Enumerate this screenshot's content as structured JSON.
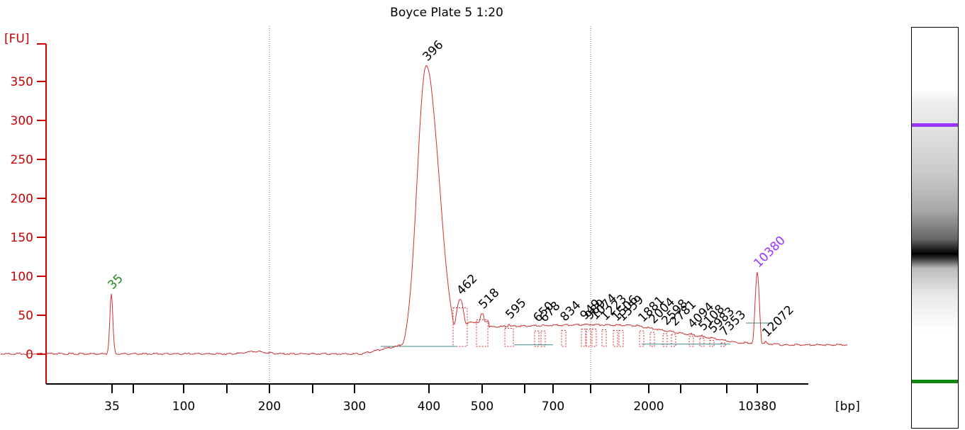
{
  "chart_data": {
    "type": "line",
    "title": "Boyce Plate 5 1:20",
    "y_unit_label": "[FU]",
    "x_unit_label": "[bp]",
    "ylim": [
      -40,
      380
    ],
    "yticks": [
      0,
      50,
      100,
      150,
      200,
      250,
      300,
      350
    ],
    "xtick_labels": [
      "35",
      "100",
      "200",
      "300",
      "400",
      "500",
      "700",
      "2000",
      "10380"
    ],
    "trace_color": "#cc3333",
    "peaks": [
      {
        "label": "35",
        "height": 77,
        "color": "#228822",
        "role": "lower marker"
      },
      {
        "label": "396",
        "height": 370,
        "color": "#000000"
      },
      {
        "label": "462",
        "height": 70,
        "color": "#000000"
      },
      {
        "label": "518",
        "height": 52,
        "color": "#000000"
      },
      {
        "label": "595",
        "height": 39,
        "color": "#000000"
      },
      {
        "label": "650",
        "height": 35,
        "color": "#000000"
      },
      {
        "label": "678",
        "height": 35,
        "color": "#000000"
      },
      {
        "label": "834",
        "height": 36,
        "color": "#000000"
      },
      {
        "label": "949",
        "height": 38,
        "color": "#000000"
      },
      {
        "label": "989",
        "height": 38,
        "color": "#000000"
      },
      {
        "label": "1074",
        "height": 38,
        "color": "#000000"
      },
      {
        "label": "1223",
        "height": 37,
        "color": "#000000"
      },
      {
        "label": "1506",
        "height": 36,
        "color": "#000000"
      },
      {
        "label": "1559",
        "height": 36,
        "color": "#000000"
      },
      {
        "label": "1881",
        "height": 35,
        "color": "#000000"
      },
      {
        "label": "2004",
        "height": 33,
        "color": "#000000"
      },
      {
        "label": "2598",
        "height": 31,
        "color": "#000000"
      },
      {
        "label": "2781",
        "height": 30,
        "color": "#000000"
      },
      {
        "label": "4094",
        "height": 27,
        "color": "#000000"
      },
      {
        "label": "5108",
        "height": 24,
        "color": "#000000"
      },
      {
        "label": "5983",
        "height": 21,
        "color": "#000000"
      },
      {
        "label": "7353",
        "height": 17,
        "color": "#000000"
      },
      {
        "label": "10380",
        "height": 105,
        "color": "#9933ff",
        "role": "upper marker"
      },
      {
        "label": "12072",
        "height": 16,
        "color": "#000000"
      }
    ],
    "grid": "vertical dotted at 200 and 1000 bp positions",
    "gel_lane": {
      "upper_marker_color": "#9933ff",
      "lower_marker_color": "#118811",
      "main_band": "dark"
    }
  }
}
